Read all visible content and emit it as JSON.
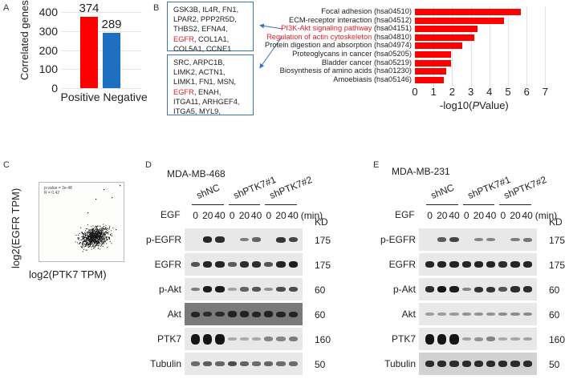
{
  "panels": {
    "A": {
      "letter": "A",
      "chart_data": {
        "type": "bar",
        "title": "",
        "xlabel": "",
        "ylabel": "Correlated genes",
        "categories": [
          "Positive",
          "Negative"
        ],
        "values": [
          374,
          289
        ],
        "colors": [
          "#ff0000",
          "#1f6fc0"
        ],
        "ylim": [
          0,
          400
        ],
        "yticks": [
          0,
          100,
          200,
          300,
          400
        ],
        "grid": true
      }
    },
    "B": {
      "letter": "B",
      "gene_box_1": {
        "lines": [
          "GSK3B, IL4R, FN1,",
          "LPAR2, PPP2R5D,",
          "THBS2, EFNA4,"
        ],
        "red_gene": "EGFR",
        "line4_rest": ", COL1A1,",
        "line5": "COL5A1, CCNE1"
      },
      "gene_box_2": {
        "lines": [
          "SRC, ARPC1B,",
          "LIMK2, ACTN1,",
          "LIMK1, FN1, MSN,"
        ],
        "red_gene": "EGFR",
        "line4_rest": ", ENAH,",
        "line5": "ITGA11, ARHGEF4,",
        "line6": "ITGA5, MYL9,"
      },
      "chart_data": {
        "type": "bar",
        "orientation": "horizontal",
        "title": "",
        "xlabel": "-log10(PValue)",
        "xlabel_parts": [
          "-log10(",
          "P",
          "Value)"
        ],
        "ylabel": "",
        "xlim": [
          0,
          7
        ],
        "xticks": [
          0,
          1,
          2,
          3,
          4,
          5,
          6,
          7
        ],
        "grid": true,
        "color": "#ff0000",
        "categories": [
          {
            "name": "Focal adhesion",
            "id": "(hsa04510)",
            "highlight": false
          },
          {
            "name": "ECM-receptor interaction",
            "id": "(hsa04512)",
            "highlight": false
          },
          {
            "name": "PI3K-Akt signaling pathway",
            "id": "(hsa04151)",
            "highlight": true
          },
          {
            "name": "Regulation of actin cytoskeleton",
            "id": "(hsa04810)",
            "highlight": true
          },
          {
            "name": "Protein digestion and absorption",
            "id": "(hsa04974)",
            "highlight": false
          },
          {
            "name": "Proteoglycans in cancer",
            "id": "(hsa05205)",
            "highlight": false
          },
          {
            "name": "Bladder cancer",
            "id": "(hsa05219)",
            "highlight": false
          },
          {
            "name": "Biosynthesis of amino acids",
            "id": "(hsa01230)",
            "highlight": false
          },
          {
            "name": "Amoebiasis",
            "id": "(hsa05146)",
            "highlight": false
          }
        ],
        "values": [
          5.7,
          4.8,
          3.35,
          3.2,
          2.55,
          1.95,
          1.93,
          1.7,
          1.57
        ]
      }
    },
    "C": {
      "letter": "C",
      "chart_data": {
        "type": "scatter",
        "xlabel": "log2(PTK7 TPM)",
        "ylabel": "log2(EGFR TPM)",
        "annotations": [
          "p-value = 2e-48",
          "R = 0.42"
        ],
        "xticks": [
          "2",
          "4",
          "6",
          "8"
        ],
        "yticks": [
          "0",
          "2",
          "4",
          "6",
          "8",
          "10"
        ],
        "n_points_approx": 1000
      }
    },
    "D": {
      "letter": "D",
      "cell_line": "MDA-MB-468",
      "groups": [
        "shNC",
        "shPTK7#1",
        "shPTK7#2"
      ],
      "treatment_label": "EGF",
      "timepoints": [
        "0",
        "20",
        "40",
        "0",
        "20",
        "40",
        "0",
        "20",
        "40"
      ],
      "unit": "(min)",
      "kd_header": "KD",
      "rows": [
        {
          "label": "p-EGFR",
          "kd": "175",
          "intensity": [
            0,
            0.9,
            0.85,
            0,
            0.35,
            0.5,
            0,
            0.8,
            0.7
          ]
        },
        {
          "label": "EGFR",
          "kd": "175",
          "intensity": [
            0.6,
            0.9,
            0.9,
            0.55,
            0.85,
            0.85,
            0.6,
            0.9,
            0.95
          ]
        },
        {
          "label": "p-Akt",
          "kd": "60",
          "intensity": [
            0.35,
            0.95,
            0.95,
            0.1,
            0.5,
            0.6,
            0.2,
            0.65,
            0.65
          ]
        },
        {
          "label": "Akt",
          "kd": "60",
          "intensity": [
            0.8,
            0.7,
            0.7,
            0.85,
            0.85,
            0.8,
            0.85,
            0.8,
            0.8
          ]
        },
        {
          "label": "PTK7",
          "kd": "160",
          "intensity": [
            1,
            1,
            1,
            0.05,
            0.05,
            0.08,
            0.3,
            0.3,
            0.35
          ]
        },
        {
          "label": "Tubulin",
          "kd": "50",
          "intensity": [
            0.45,
            0.55,
            0.5,
            0.65,
            0.5,
            0.45,
            0.5,
            0.45,
            0.45
          ]
        }
      ]
    },
    "E": {
      "letter": "E",
      "cell_line": "MDA-MB-231",
      "groups": [
        "shNC",
        "shPTK7#1",
        "shPTK7#2"
      ],
      "treatment_label": "EGF",
      "timepoints": [
        "0",
        "20",
        "40",
        "0",
        "20",
        "40",
        "0",
        "20",
        "40"
      ],
      "unit": "(min)",
      "kd_header": "KD",
      "rows": [
        {
          "label": "p-EGFR",
          "kd": "175",
          "intensity": [
            0,
            0.55,
            0.7,
            0,
            0.3,
            0.3,
            0,
            0.35,
            0.4
          ]
        },
        {
          "label": "EGFR",
          "kd": "175",
          "intensity": [
            0.9,
            0.9,
            0.9,
            0.9,
            0.9,
            0.9,
            0.85,
            0.9,
            0.9
          ]
        },
        {
          "label": "p-Akt",
          "kd": "60",
          "intensity": [
            0.85,
            1,
            0.95,
            0.3,
            0.8,
            0.8,
            0.6,
            0.85,
            0.85
          ]
        },
        {
          "label": "Akt",
          "kd": "60",
          "intensity": [
            0.15,
            0.15,
            0.15,
            0.2,
            0.2,
            0.2,
            0.25,
            0.25,
            0.25
          ]
        },
        {
          "label": "PTK7",
          "kd": "160",
          "intensity": [
            1,
            1,
            1,
            0.1,
            0.2,
            0.3,
            0.05,
            0.08,
            0.1
          ]
        },
        {
          "label": "Tubulin",
          "kd": "50",
          "intensity": [
            0.85,
            0.85,
            0.85,
            0.85,
            0.85,
            0.85,
            0.85,
            0.85,
            0.85
          ]
        }
      ]
    }
  }
}
